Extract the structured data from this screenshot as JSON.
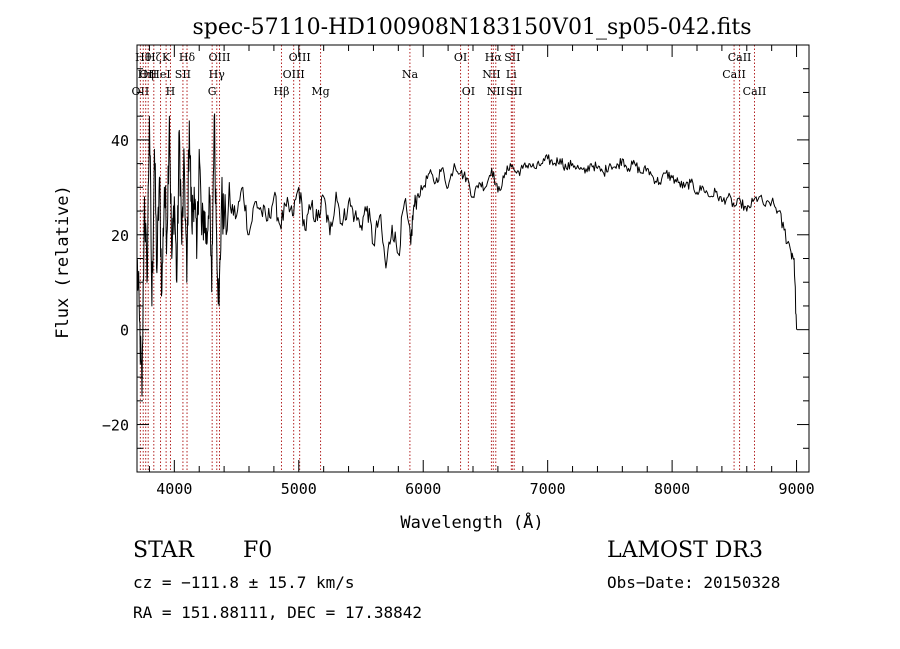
{
  "colors": {
    "spectrum": "#000000",
    "lines": "#b22222",
    "axis": "#000000"
  },
  "chart_data": {
    "type": "line",
    "title": "spec-57110-HD100908N183150V01_sp05-042.fits",
    "xlabel": "Wavelength (Å)",
    "ylabel": "Flux (relative)",
    "xlim": [
      3700,
      9100
    ],
    "ylim": [
      -30,
      60
    ],
    "xticks": [
      4000,
      5000,
      6000,
      7000,
      8000,
      9000
    ],
    "yticks": [
      -20,
      0,
      20,
      40
    ],
    "xtick_labels": [
      "4000",
      "5000",
      "6000",
      "7000",
      "8000",
      "9000"
    ],
    "ytick_labels": [
      "−20",
      "0",
      "20",
      "40"
    ],
    "grid": false,
    "series": [
      {
        "name": "spectrum",
        "x": [
          3700,
          3720,
          3740,
          3760,
          3780,
          3800,
          3820,
          3840,
          3860,
          3880,
          3900,
          3920,
          3940,
          3960,
          3980,
          4000,
          4020,
          4040,
          4060,
          4080,
          4100,
          4120,
          4140,
          4160,
          4180,
          4200,
          4220,
          4240,
          4260,
          4280,
          4300,
          4320,
          4340,
          4360,
          4380,
          4400,
          4450,
          4500,
          4550,
          4600,
          4650,
          4700,
          4750,
          4800,
          4850,
          4900,
          4950,
          5000,
          5050,
          5100,
          5150,
          5200,
          5250,
          5300,
          5350,
          5400,
          5450,
          5500,
          5550,
          5600,
          5650,
          5700,
          5750,
          5800,
          5850,
          5900,
          5920,
          5950,
          6000,
          6050,
          6100,
          6150,
          6200,
          6250,
          6300,
          6350,
          6400,
          6450,
          6500,
          6550,
          6600,
          6650,
          6700,
          6750,
          6800,
          6850,
          6900,
          6950,
          7000,
          7050,
          7100,
          7150,
          7200,
          7250,
          7300,
          7350,
          7400,
          7450,
          7500,
          7550,
          7600,
          7650,
          7700,
          7750,
          7800,
          7850,
          7900,
          7950,
          8000,
          8050,
          8100,
          8150,
          8200,
          8250,
          8300,
          8350,
          8400,
          8450,
          8500,
          8550,
          8600,
          8650,
          8700,
          8750,
          8800,
          8850,
          8900,
          8950,
          8980,
          9000
        ],
        "values": [
          15,
          2,
          -14,
          28,
          10,
          45,
          5,
          38,
          12,
          32,
          8,
          30,
          20,
          45,
          15,
          28,
          10,
          42,
          18,
          35,
          10,
          44,
          22,
          30,
          15,
          38,
          20,
          25,
          18,
          30,
          8,
          45,
          20,
          5,
          28,
          22,
          26,
          24,
          30,
          20,
          27,
          25,
          23,
          28,
          22,
          26,
          24,
          30,
          21,
          26,
          23,
          28,
          20,
          29,
          22,
          27,
          24,
          22,
          26,
          18,
          24,
          13,
          22,
          16,
          27,
          18,
          25,
          28,
          30,
          33,
          31,
          34,
          30,
          35,
          33,
          32,
          28,
          31,
          30,
          34,
          29,
          32,
          35,
          33,
          34,
          35,
          34,
          35,
          36,
          35,
          36,
          34,
          35,
          34,
          33,
          35,
          34,
          33,
          35,
          34,
          36,
          34,
          35,
          33,
          34,
          32,
          31,
          33,
          32,
          31,
          30,
          31,
          29,
          30,
          28,
          29,
          27,
          28,
          26,
          27,
          25,
          27,
          28,
          26,
          27,
          25,
          21,
          17,
          15,
          0
        ]
      }
    ],
    "line_markers": [
      {
        "label": "OII",
        "wl": 3727,
        "row": 3
      },
      {
        "label": "Hθ",
        "wl": 3750,
        "row": 1
      },
      {
        "label": "Hη",
        "wl": 3770,
        "row": 2
      },
      {
        "label": "OII",
        "wl": 3790,
        "row": 2
      },
      {
        "label": "Hζ",
        "wl": 3835,
        "row": 1
      },
      {
        "label": "HeI",
        "wl": 3889,
        "row": 2
      },
      {
        "label": "K",
        "wl": 3934,
        "row": 1
      },
      {
        "label": "SII",
        "wl": 4069,
        "row": 2
      },
      {
        "label": "H",
        "wl": 3969,
        "row": 3
      },
      {
        "label": "Hδ",
        "wl": 4102,
        "row": 1
      },
      {
        "label": "Hγ",
        "wl": 4341,
        "row": 2
      },
      {
        "label": "OIII",
        "wl": 4363,
        "row": 1
      },
      {
        "label": "G",
        "wl": 4304,
        "row": 3
      },
      {
        "label": "Hβ",
        "wl": 4861,
        "row": 3
      },
      {
        "label": "OIII",
        "wl": 4959,
        "row": 2
      },
      {
        "label": "OIII",
        "wl": 5007,
        "row": 1
      },
      {
        "label": "Mg",
        "wl": 5175,
        "row": 3
      },
      {
        "label": "Na",
        "wl": 5893,
        "row": 2
      },
      {
        "label": "OI",
        "wl": 6300,
        "row": 1
      },
      {
        "label": "OI",
        "wl": 6363,
        "row": 3
      },
      {
        "label": "NII",
        "wl": 6548,
        "row": 2
      },
      {
        "label": "Hα",
        "wl": 6563,
        "row": 1
      },
      {
        "label": "NII",
        "wl": 6583,
        "row": 3
      },
      {
        "label": "Li",
        "wl": 6708,
        "row": 2
      },
      {
        "label": "SII",
        "wl": 6716,
        "row": 1
      },
      {
        "label": "SII",
        "wl": 6731,
        "row": 3
      },
      {
        "label": "CaII",
        "wl": 8498,
        "row": 2
      },
      {
        "label": "CaII",
        "wl": 8542,
        "row": 1
      },
      {
        "label": "CaII",
        "wl": 8662,
        "row": 3
      }
    ]
  },
  "info": {
    "object_type": "STAR",
    "subclass": "F0",
    "survey": "LAMOST DR3",
    "cz": "cz = −111.8 ± 15.7 km/s",
    "obs_date": "Obs−Date: 20150328",
    "radec": "RA = 151.88111, DEC =  17.38842"
  }
}
